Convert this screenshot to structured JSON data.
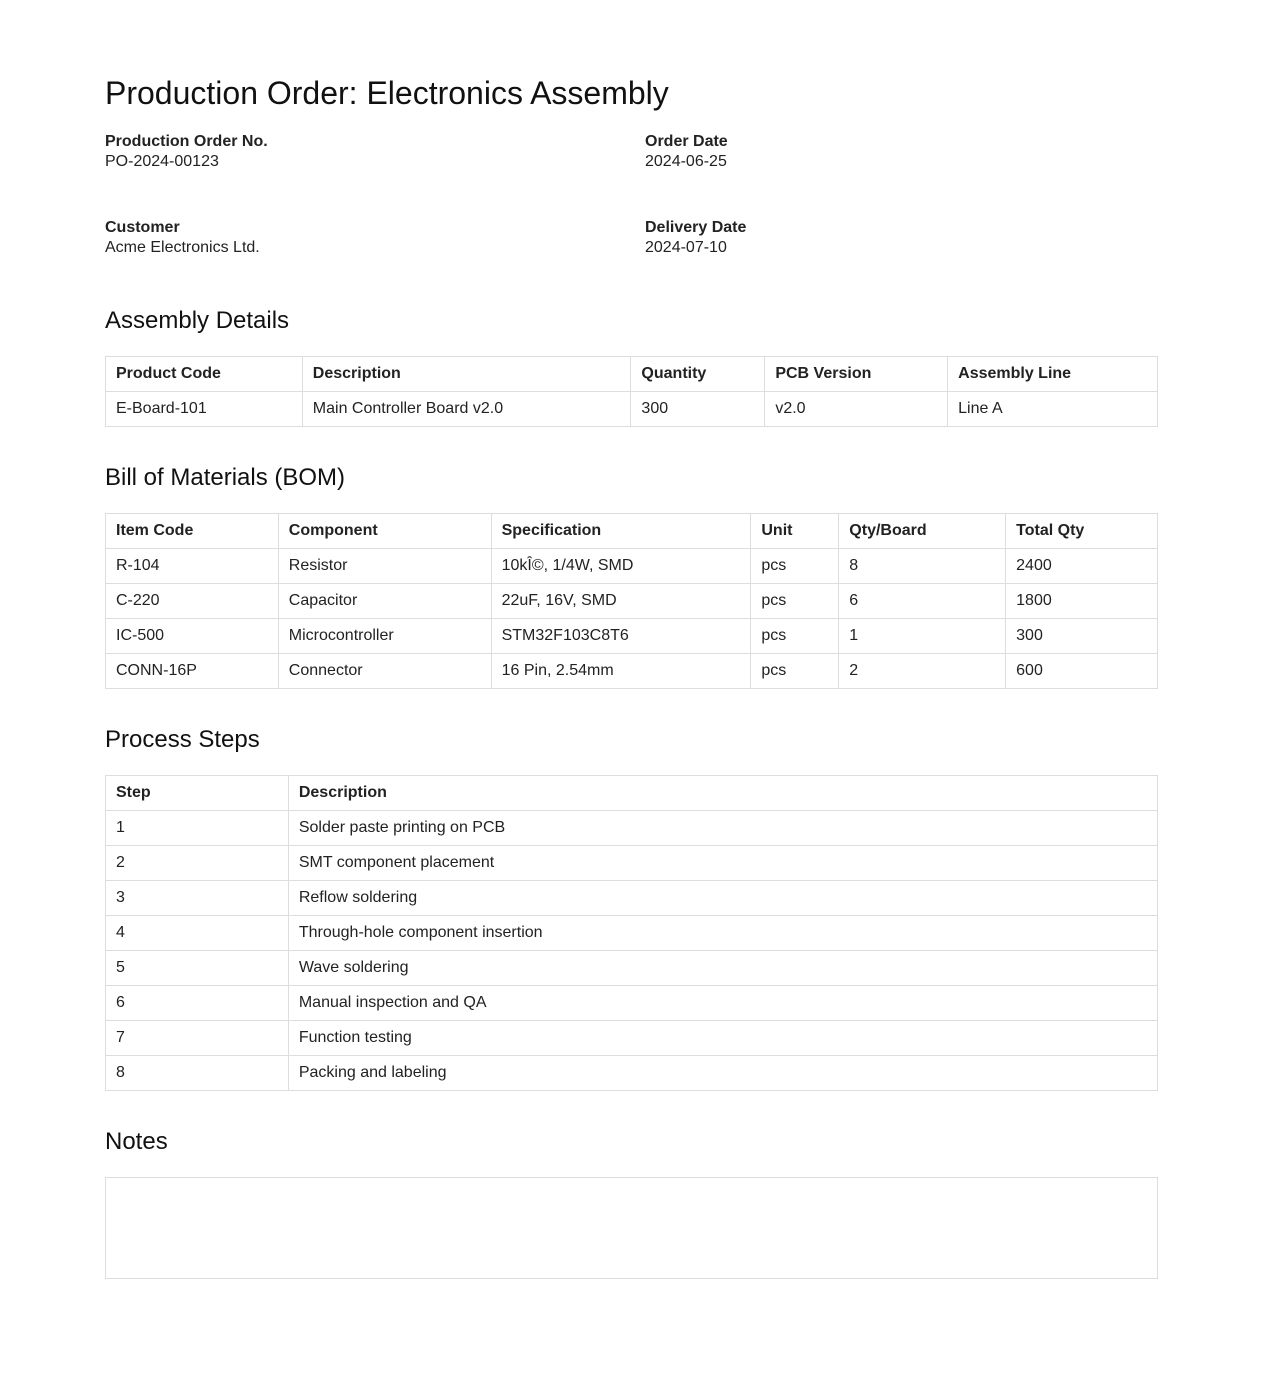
{
  "title": "Production Order: Electronics Assembly",
  "meta": {
    "po_label": "Production Order No.",
    "po_value": "PO-2024-00123",
    "order_date_label": "Order Date",
    "order_date_value": "2024-06-25",
    "customer_label": "Customer",
    "customer_value": "Acme Electronics Ltd.",
    "delivery_label": "Delivery Date",
    "delivery_value": "2024-07-10"
  },
  "assembly": {
    "heading": "Assembly Details",
    "headers": [
      "Product Code",
      "Description",
      "Quantity",
      "PCB Version",
      "Assembly Line"
    ],
    "rows": [
      [
        "E-Board-101",
        "Main Controller Board v2.0",
        "300",
        "v2.0",
        "Line A"
      ]
    ]
  },
  "bom": {
    "heading": "Bill of Materials (BOM)",
    "headers": [
      "Item Code",
      "Component",
      "Specification",
      "Unit",
      "Qty/Board",
      "Total Qty"
    ],
    "rows": [
      [
        "R-104",
        "Resistor",
        "10kÎ©, 1/4W, SMD",
        "pcs",
        "8",
        "2400"
      ],
      [
        "C-220",
        "Capacitor",
        "22uF, 16V, SMD",
        "pcs",
        "6",
        "1800"
      ],
      [
        "IC-500",
        "Microcontroller",
        "STM32F103C8T6",
        "pcs",
        "1",
        "300"
      ],
      [
        "CONN-16P",
        "Connector",
        "16 Pin, 2.54mm",
        "pcs",
        "2",
        "600"
      ]
    ]
  },
  "process": {
    "heading": "Process Steps",
    "headers": [
      "Step",
      "Description"
    ],
    "rows": [
      [
        "1",
        "Solder paste printing on PCB"
      ],
      [
        "2",
        "SMT component placement"
      ],
      [
        "3",
        "Reflow soldering"
      ],
      [
        "4",
        "Through-hole component insertion"
      ],
      [
        "5",
        "Wave soldering"
      ],
      [
        "6",
        "Manual inspection and QA"
      ],
      [
        "7",
        "Function testing"
      ],
      [
        "8",
        "Packing and labeling"
      ]
    ]
  },
  "notes": {
    "heading": "Notes"
  }
}
